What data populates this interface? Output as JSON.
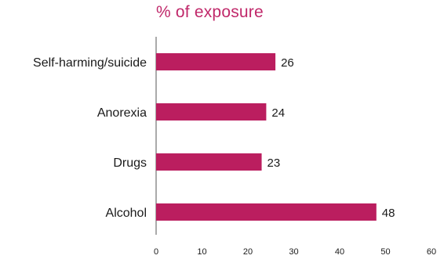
{
  "chart_data": {
    "type": "bar",
    "orientation": "horizontal",
    "title": "% of exposure",
    "xlabel": "",
    "ylabel": "",
    "categories": [
      "Self-harming/suicide",
      "Anorexia",
      "Drugs",
      "Alcohol"
    ],
    "values": [
      26,
      24,
      23,
      48
    ],
    "xlim": [
      0,
      60
    ],
    "xticks": [
      0,
      10,
      20,
      30,
      40,
      50,
      60
    ],
    "grid": false,
    "legend": "none",
    "colors": {
      "bar": "#bb1e5f",
      "title": "#c0286a",
      "text": "#1a1a1a",
      "axis": "#555555"
    }
  }
}
